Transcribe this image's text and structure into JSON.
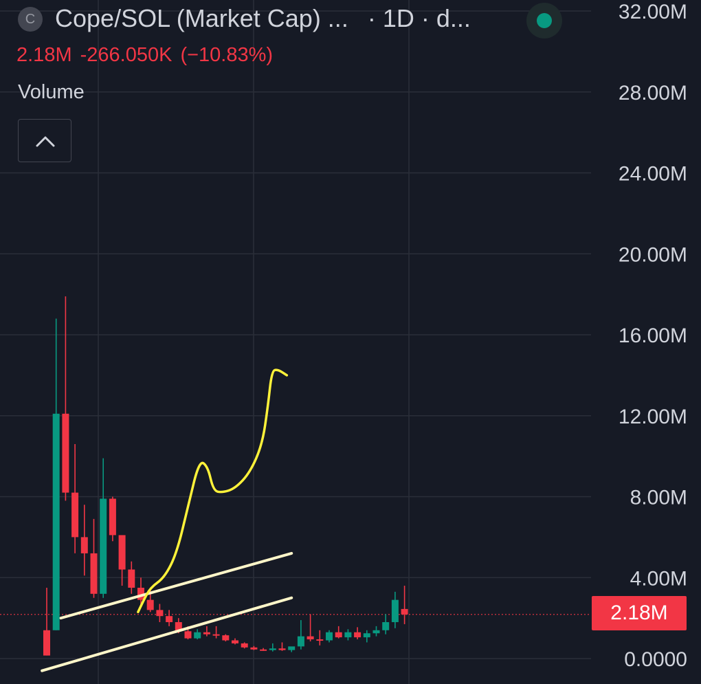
{
  "header": {
    "symbol_icon_letter": "C",
    "title": "Cope/SOL (Market Cap) ...",
    "interval": "· 1D · d...",
    "quote": {
      "last": "2.18M",
      "change": "-266.050K",
      "change_pct": "(−10.83%)",
      "color": "#f23645"
    },
    "volume_label": "Volume",
    "status_color": "#089981"
  },
  "price_tag": "2.18M",
  "colors": {
    "up": "#089981",
    "down": "#f23645",
    "background": "#161a25",
    "grid": "#2a2e39",
    "axis_text": "#d1d4dc",
    "drawing_channel": "#fff6c9",
    "drawing_projection": "#fff23a"
  },
  "chart_data": {
    "type": "candlestick",
    "yaxis": {
      "min": 0,
      "max": 32000000,
      "position": "right",
      "ticks": [
        {
          "value": 32000000,
          "label": "32.00M"
        },
        {
          "value": 28000000,
          "label": "28.00M"
        },
        {
          "value": 24000000,
          "label": "24.00M"
        },
        {
          "value": 20000000,
          "label": "20.00M"
        },
        {
          "value": 16000000,
          "label": "16.00M"
        },
        {
          "value": 12000000,
          "label": "12.00M"
        },
        {
          "value": 8000000,
          "label": "8.00M"
        },
        {
          "value": 4000000,
          "label": "4.00M"
        },
        {
          "value": 0,
          "label": "0.0000"
        }
      ]
    },
    "grid": true,
    "last_price": 2180000,
    "candles": [
      {
        "o": 1.4,
        "h": 3.5,
        "l": 0.15,
        "c": 0.15
      },
      {
        "o": 1.4,
        "h": 16.8,
        "l": 1.4,
        "c": 12.1
      },
      {
        "o": 12.1,
        "h": 17.9,
        "l": 7.8,
        "c": 8.2
      },
      {
        "o": 8.2,
        "h": 10.6,
        "l": 5.2,
        "c": 6.0
      },
      {
        "o": 6.0,
        "h": 7.6,
        "l": 4.1,
        "c": 5.2
      },
      {
        "o": 5.2,
        "h": 6.9,
        "l": 3.0,
        "c": 3.2
      },
      {
        "o": 3.2,
        "h": 9.9,
        "l": 3.0,
        "c": 7.9
      },
      {
        "o": 7.9,
        "h": 8.0,
        "l": 5.8,
        "c": 6.1
      },
      {
        "o": 6.1,
        "h": 5.9,
        "l": 3.6,
        "c": 4.4
      },
      {
        "o": 4.4,
        "h": 4.8,
        "l": 3.2,
        "c": 3.5
      },
      {
        "o": 3.5,
        "h": 4.0,
        "l": 2.6,
        "c": 2.9
      },
      {
        "o": 2.9,
        "h": 3.4,
        "l": 2.3,
        "c": 2.4
      },
      {
        "o": 2.4,
        "h": 2.7,
        "l": 1.8,
        "c": 2.1
      },
      {
        "o": 2.1,
        "h": 2.4,
        "l": 1.6,
        "c": 1.8
      },
      {
        "o": 1.8,
        "h": 2.0,
        "l": 1.25,
        "c": 1.35
      },
      {
        "o": 1.35,
        "h": 1.6,
        "l": 0.95,
        "c": 1.0
      },
      {
        "o": 1.0,
        "h": 1.45,
        "l": 0.95,
        "c": 1.3
      },
      {
        "o": 1.3,
        "h": 1.6,
        "l": 1.1,
        "c": 1.2
      },
      {
        "o": 1.2,
        "h": 1.6,
        "l": 1.0,
        "c": 1.15
      },
      {
        "o": 1.15,
        "h": 1.2,
        "l": 0.85,
        "c": 0.9
      },
      {
        "o": 0.9,
        "h": 1.0,
        "l": 0.7,
        "c": 0.75
      },
      {
        "o": 0.75,
        "h": 0.8,
        "l": 0.5,
        "c": 0.55
      },
      {
        "o": 0.55,
        "h": 0.62,
        "l": 0.42,
        "c": 0.45
      },
      {
        "o": 0.45,
        "h": 0.52,
        "l": 0.38,
        "c": 0.42
      },
      {
        "o": 0.42,
        "h": 0.75,
        "l": 0.35,
        "c": 0.5
      },
      {
        "o": 0.5,
        "h": 0.8,
        "l": 0.38,
        "c": 0.42
      },
      {
        "o": 0.42,
        "h": 0.52,
        "l": 0.32,
        "c": 0.6
      },
      {
        "o": 0.6,
        "h": 1.9,
        "l": 0.45,
        "c": 1.1
      },
      {
        "o": 1.1,
        "h": 2.2,
        "l": 0.85,
        "c": 0.95
      },
      {
        "o": 0.95,
        "h": 1.4,
        "l": 0.65,
        "c": 0.9
      },
      {
        "o": 0.9,
        "h": 1.4,
        "l": 0.8,
        "c": 1.3
      },
      {
        "o": 1.3,
        "h": 1.6,
        "l": 1.0,
        "c": 1.05
      },
      {
        "o": 1.05,
        "h": 1.45,
        "l": 0.9,
        "c": 1.3
      },
      {
        "o": 1.3,
        "h": 1.55,
        "l": 0.95,
        "c": 1.05
      },
      {
        "o": 1.05,
        "h": 1.4,
        "l": 0.8,
        "c": 1.25
      },
      {
        "o": 1.25,
        "h": 1.6,
        "l": 1.1,
        "c": 1.4
      },
      {
        "o": 1.4,
        "h": 2.2,
        "l": 1.2,
        "c": 1.8
      },
      {
        "o": 1.8,
        "h": 3.3,
        "l": 1.5,
        "c": 2.9
      },
      {
        "o": 2.45,
        "h": 3.6,
        "l": 1.7,
        "c": 2.18
      }
    ],
    "value_unit_multiplier": 1000000,
    "drawings": [
      {
        "type": "trendline",
        "name": "channel-upper",
        "from": [
          1.5,
          2.0
        ],
        "to": [
          26.0,
          5.2
        ]
      },
      {
        "type": "trendline",
        "name": "channel-lower",
        "from": [
          -0.5,
          -0.6
        ],
        "to": [
          26.0,
          3.0
        ]
      },
      {
        "type": "freehand",
        "name": "projection",
        "points": [
          [
            9.7,
            2.3
          ],
          [
            10.2,
            2.8
          ],
          [
            11.0,
            3.5
          ],
          [
            12.5,
            4.0
          ],
          [
            13.8,
            5.2
          ],
          [
            15.0,
            7.5
          ],
          [
            16.2,
            9.8
          ],
          [
            17.1,
            9.5
          ],
          [
            17.7,
            8.3
          ],
          [
            18.6,
            8.2
          ],
          [
            20.0,
            8.4
          ],
          [
            21.6,
            9.2
          ],
          [
            22.9,
            10.6
          ],
          [
            23.5,
            12.5
          ],
          [
            23.9,
            14.2
          ],
          [
            24.5,
            14.3
          ],
          [
            25.5,
            14.0
          ]
        ]
      }
    ]
  }
}
